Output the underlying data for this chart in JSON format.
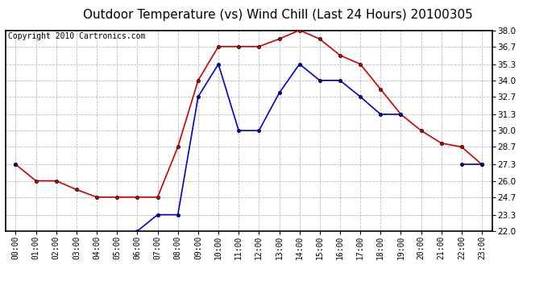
{
  "title": "Outdoor Temperature (vs) Wind Chill (Last 24 Hours) 20100305",
  "copyright": "Copyright 2010 Cartronics.com",
  "x_labels": [
    "00:00",
    "01:00",
    "02:00",
    "03:00",
    "04:00",
    "05:00",
    "06:00",
    "07:00",
    "08:00",
    "09:00",
    "10:00",
    "11:00",
    "12:00",
    "13:00",
    "14:00",
    "15:00",
    "16:00",
    "17:00",
    "18:00",
    "19:00",
    "20:00",
    "21:00",
    "22:00",
    "23:00"
  ],
  "red_data": [
    27.3,
    26.0,
    26.0,
    25.3,
    24.7,
    24.7,
    24.7,
    24.7,
    28.7,
    34.0,
    36.7,
    36.7,
    36.7,
    37.3,
    38.0,
    37.3,
    36.0,
    35.3,
    33.3,
    31.3,
    30.0,
    29.0,
    28.7,
    27.3
  ],
  "blue_data": [
    27.3,
    null,
    null,
    null,
    null,
    null,
    22.0,
    23.3,
    23.3,
    32.7,
    35.3,
    30.0,
    30.0,
    33.0,
    35.3,
    34.0,
    34.0,
    32.7,
    31.3,
    31.3,
    null,
    null,
    27.3,
    27.3
  ],
  "ylim": [
    22.0,
    38.0
  ],
  "yticks": [
    22.0,
    23.3,
    24.7,
    26.0,
    27.3,
    28.7,
    30.0,
    31.3,
    32.7,
    34.0,
    35.3,
    36.7,
    38.0
  ],
  "red_color": "#cc0000",
  "blue_color": "#0000cc",
  "marker_size": 3,
  "grid_color": "#bbbbbb",
  "bg_color": "#ffffff",
  "plot_bg_color": "#ffffff",
  "title_fontsize": 11,
  "copyright_fontsize": 7,
  "tick_fontsize": 7,
  "ytick_fontsize": 7.5
}
